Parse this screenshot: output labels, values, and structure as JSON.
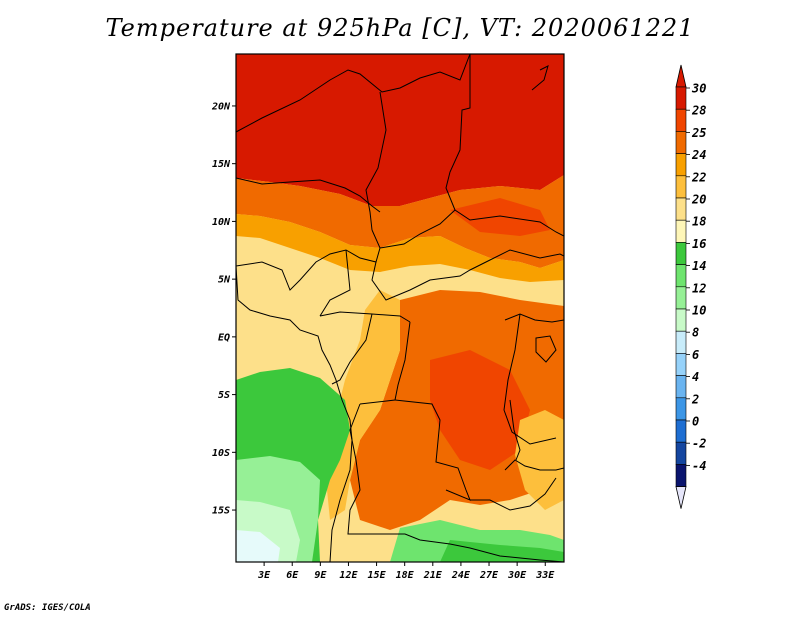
{
  "title": "Temperature at 925hPa [C], VT: 2020061221",
  "footer": "GrADS: IGES/COLA",
  "map": {
    "lat_labels": [
      "20N",
      "15N",
      "10N",
      "5N",
      "EQ",
      "5S",
      "10S",
      "15S"
    ],
    "lon_labels": [
      "3E",
      "6E",
      "9E",
      "12E",
      "15E",
      "18E",
      "21E",
      "24E",
      "27E",
      "30E",
      "33E"
    ],
    "lat_values": [
      20,
      15,
      10,
      5,
      0,
      -5,
      -10,
      -15
    ],
    "lon_values": [
      3,
      6,
      9,
      12,
      15,
      18,
      21,
      24,
      27,
      30,
      33
    ],
    "lat_range": [
      -19.5,
      24.5
    ],
    "lon_range": [
      0,
      35
    ]
  },
  "colorbar": {
    "labels": [
      "30",
      "28",
      "25",
      "24",
      "22",
      "20",
      "18",
      "16",
      "14",
      "12",
      "10",
      "8",
      "6",
      "4",
      "2",
      "0",
      "-2",
      "-4"
    ],
    "colors": [
      "#d71900",
      "#f04500",
      "#f06a00",
      "#f8a000",
      "#fdbf3c",
      "#fde08a",
      "#fef6b8",
      "#3cc83c",
      "#6ee46e",
      "#96f096",
      "#c8fac8",
      "#c8ecfa",
      "#96d2fa",
      "#6ab4f0",
      "#3c96e6",
      "#1e6ed2",
      "#1446a0",
      "#0a146e"
    ],
    "top_color": "#d71900",
    "bottom_color": "#e6e6fa"
  }
}
